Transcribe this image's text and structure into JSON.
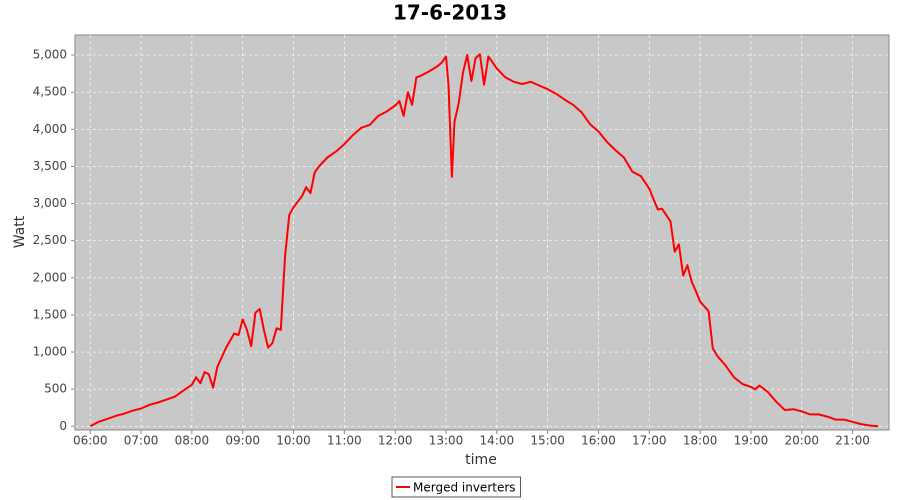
{
  "chart_data": {
    "type": "line",
    "title": "17-6-2013",
    "x_label": "time",
    "y_label": "Watt",
    "x": [
      "06:00",
      "06:10",
      "06:20",
      "06:30",
      "06:40",
      "06:50",
      "07:00",
      "07:10",
      "07:20",
      "07:30",
      "07:40",
      "07:50",
      "08:00",
      "08:05",
      "08:10",
      "08:15",
      "08:20",
      "08:25",
      "08:30",
      "08:40",
      "08:50",
      "08:55",
      "09:00",
      "09:05",
      "09:10",
      "09:15",
      "09:20",
      "09:25",
      "09:30",
      "09:35",
      "09:40",
      "09:45",
      "09:50",
      "09:55",
      "10:00",
      "10:10",
      "10:15",
      "10:20",
      "10:25",
      "10:30",
      "10:40",
      "10:50",
      "11:00",
      "11:10",
      "11:20",
      "11:30",
      "11:40",
      "11:50",
      "12:00",
      "12:05",
      "12:10",
      "12:15",
      "12:20",
      "12:25",
      "12:30",
      "12:40",
      "12:50",
      "12:55",
      "13:00",
      "13:03",
      "13:07",
      "13:10",
      "13:15",
      "13:20",
      "13:25",
      "13:30",
      "13:35",
      "13:40",
      "13:45",
      "13:50",
      "14:00",
      "14:10",
      "14:20",
      "14:30",
      "14:40",
      "14:50",
      "15:00",
      "15:10",
      "15:20",
      "15:30",
      "15:40",
      "15:50",
      "16:00",
      "16:10",
      "16:20",
      "16:30",
      "16:40",
      "16:50",
      "17:00",
      "17:05",
      "17:10",
      "17:15",
      "17:25",
      "17:30",
      "17:35",
      "17:40",
      "17:45",
      "17:50",
      "17:55",
      "18:00",
      "18:10",
      "18:15",
      "18:20",
      "18:30",
      "18:40",
      "18:50",
      "19:00",
      "19:05",
      "19:10",
      "19:20",
      "19:30",
      "19:40",
      "19:50",
      "20:00",
      "20:10",
      "20:20",
      "20:30",
      "20:40",
      "20:50",
      "21:00",
      "21:10",
      "21:20",
      "21:30"
    ],
    "series": [
      {
        "name": "Merged inverters",
        "color": "#ff0000",
        "values": [
          0,
          60,
          100,
          140,
          170,
          210,
          240,
          290,
          320,
          360,
          400,
          480,
          560,
          660,
          580,
          730,
          700,
          520,
          800,
          1050,
          1250,
          1230,
          1440,
          1300,
          1080,
          1530,
          1580,
          1300,
          1060,
          1120,
          1320,
          1300,
          2300,
          2850,
          2950,
          3100,
          3220,
          3140,
          3420,
          3500,
          3620,
          3700,
          3800,
          3920,
          4020,
          4060,
          4180,
          4240,
          4320,
          4380,
          4180,
          4500,
          4330,
          4700,
          4720,
          4780,
          4850,
          4900,
          4980,
          4600,
          3360,
          4100,
          4350,
          4760,
          5000,
          4650,
          4960,
          5010,
          4600,
          4980,
          4820,
          4700,
          4640,
          4610,
          4640,
          4590,
          4540,
          4480,
          4400,
          4330,
          4230,
          4070,
          3970,
          3830,
          3720,
          3620,
          3430,
          3370,
          3200,
          3060,
          2920,
          2930,
          2760,
          2350,
          2450,
          2030,
          2170,
          1950,
          1820,
          1680,
          1550,
          1050,
          950,
          820,
          660,
          570,
          530,
          500,
          550,
          460,
          330,
          220,
          230,
          200,
          160,
          160,
          130,
          90,
          90,
          60,
          30,
          10,
          0
        ]
      }
    ],
    "xlim": [
      "05:42",
      "21:43"
    ],
    "xticks": [
      "06:00",
      "07:00",
      "08:00",
      "09:00",
      "10:00",
      "11:00",
      "12:00",
      "13:00",
      "14:00",
      "15:00",
      "16:00",
      "17:00",
      "18:00",
      "19:00",
      "20:00",
      "21:00"
    ],
    "ylim": [
      -50,
      5270
    ],
    "yticks": [
      0,
      500,
      {
        "value": 1000,
        "label": "1,000"
      },
      {
        "value": 1500,
        "label": "1,500"
      },
      {
        "value": 2000,
        "label": "2,000"
      },
      {
        "value": 2500,
        "label": "2,500"
      },
      {
        "value": 3000,
        "label": "3,000"
      },
      {
        "value": 3500,
        "label": "3,500"
      },
      {
        "value": 4000,
        "label": "4,000"
      },
      {
        "value": 4500,
        "label": "4,500"
      },
      {
        "value": 5000,
        "label": "5,000"
      }
    ],
    "grid": true,
    "legend": "bottom"
  }
}
